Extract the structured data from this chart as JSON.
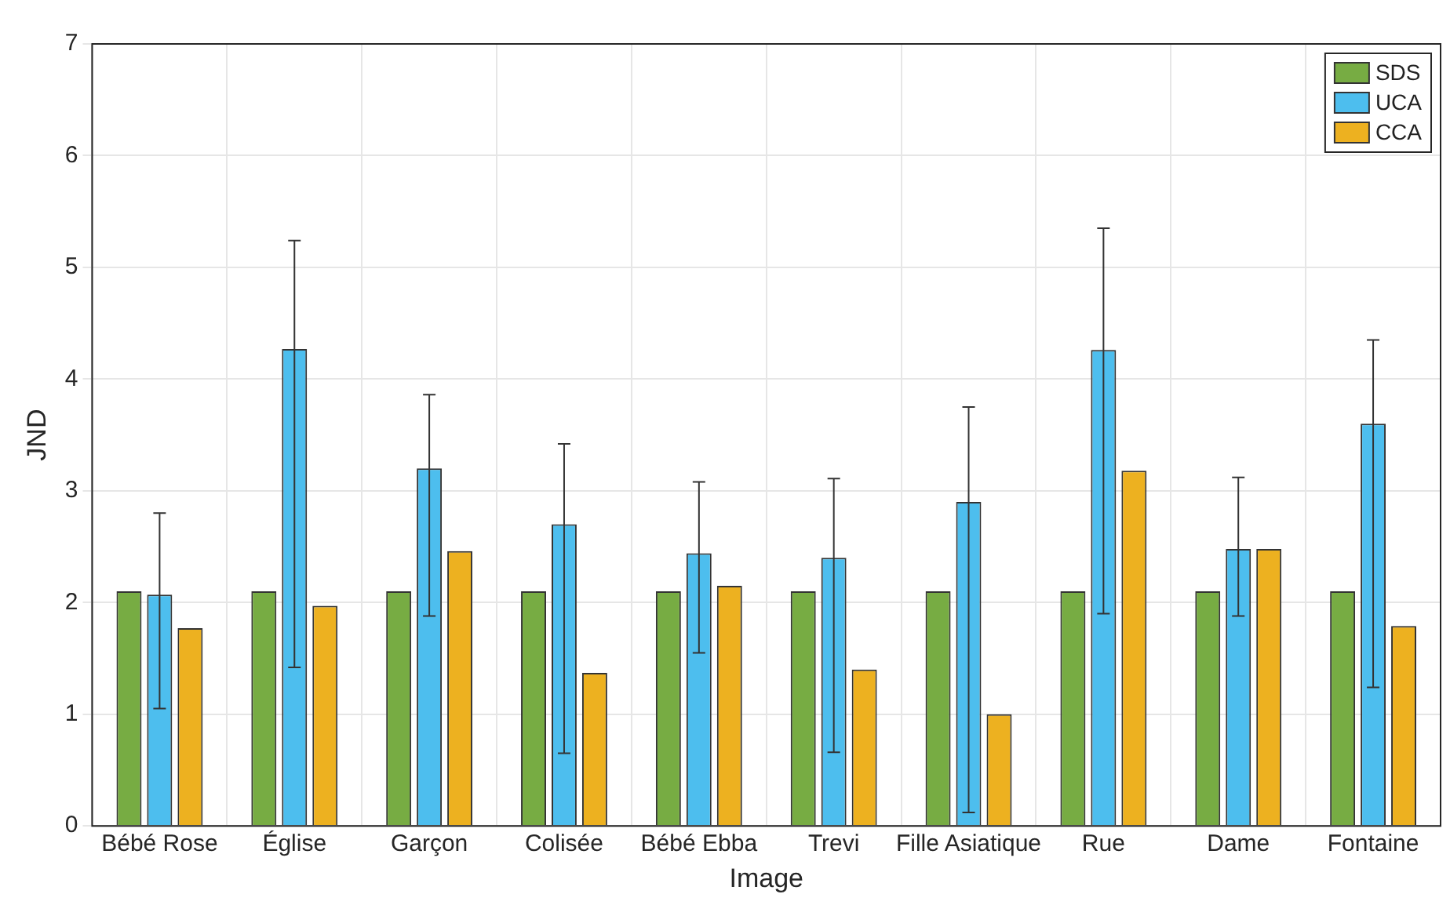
{
  "chart_data": {
    "type": "bar",
    "xlabel": "Image",
    "ylabel": "JND",
    "categories": [
      "Bébé Rose",
      "Église",
      "Garçon",
      "Colisée",
      "Bébé Ebba",
      "Trevi",
      "Fille Asiatique",
      "Rue",
      "Dame",
      "Fontaine"
    ],
    "series": [
      {
        "name": "SDS",
        "color": "#77ac43",
        "values": [
          2.1,
          2.1,
          2.1,
          2.1,
          2.1,
          2.1,
          2.1,
          2.1,
          2.1,
          2.1
        ]
      },
      {
        "name": "UCA",
        "color": "#4dbeee",
        "values": [
          2.07,
          4.27,
          3.2,
          2.7,
          2.44,
          2.4,
          2.9,
          4.26,
          2.48,
          3.6
        ],
        "errors": [
          [
            1.05,
            2.8
          ],
          [
            1.42,
            5.24
          ],
          [
            1.88,
            3.86
          ],
          [
            0.65,
            3.42
          ],
          [
            1.55,
            3.08
          ],
          [
            0.66,
            3.11
          ],
          [
            0.12,
            3.75
          ],
          [
            1.9,
            5.35
          ],
          [
            1.88,
            3.12
          ],
          [
            1.24,
            4.35
          ]
        ]
      },
      {
        "name": "CCA",
        "color": "#edb120",
        "values": [
          1.77,
          1.97,
          2.46,
          1.37,
          2.15,
          1.4,
          1.0,
          3.18,
          2.48,
          1.79
        ]
      }
    ],
    "ylim": [
      0,
      7
    ],
    "yticks": [
      0,
      1,
      2,
      3,
      4,
      5,
      6,
      7
    ],
    "grid": true,
    "legend": "top right"
  }
}
